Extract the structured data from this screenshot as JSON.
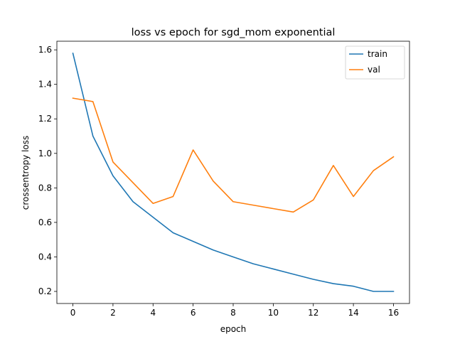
{
  "chart_data": {
    "type": "line",
    "title": "loss vs epoch for sgd_mom exponential",
    "xlabel": "epoch",
    "ylabel": "crossentropy loss",
    "x": [
      0,
      1,
      2,
      3,
      4,
      5,
      6,
      7,
      8,
      9,
      10,
      11,
      12,
      13,
      14,
      15,
      16
    ],
    "xlim": [
      -0.8,
      16.8
    ],
    "ylim": [
      0.13,
      1.65
    ],
    "xticks": [
      0,
      2,
      4,
      6,
      8,
      10,
      12,
      14,
      16
    ],
    "yticks": [
      0.2,
      0.4,
      0.6,
      0.8,
      1.0,
      1.2,
      1.4,
      1.6
    ],
    "xtick_labels": [
      "0",
      "2",
      "4",
      "6",
      "8",
      "10",
      "12",
      "14",
      "16"
    ],
    "ytick_labels": [
      "0.2",
      "0.4",
      "0.6",
      "0.8",
      "1.0",
      "1.2",
      "1.4",
      "1.6"
    ],
    "grid": false,
    "legend_position": "top-right",
    "series": [
      {
        "name": "train",
        "color": "#1f77b4",
        "values": [
          1.58,
          1.1,
          0.87,
          0.72,
          0.63,
          0.54,
          0.49,
          0.44,
          0.4,
          0.36,
          0.33,
          0.3,
          0.27,
          0.245,
          0.23,
          0.2,
          0.2
        ]
      },
      {
        "name": "val",
        "color": "#ff7f0e",
        "values": [
          1.32,
          1.3,
          0.95,
          0.83,
          0.71,
          0.75,
          1.02,
          0.84,
          0.72,
          0.7,
          0.68,
          0.66,
          0.73,
          0.93,
          0.75,
          0.9,
          0.98
        ]
      }
    ]
  }
}
